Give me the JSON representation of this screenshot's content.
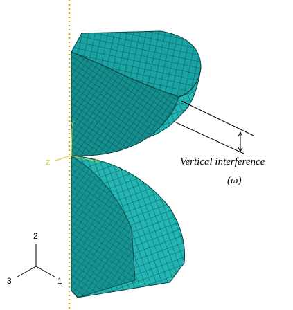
{
  "annotation": {
    "label": "Vertical interference",
    "symbol": "(ω)"
  },
  "triad": {
    "axis_2": "2",
    "axis_3": "3",
    "axis_1": "1"
  },
  "local_axes": {
    "z": "Z",
    "x": "X",
    "y": "Y"
  }
}
